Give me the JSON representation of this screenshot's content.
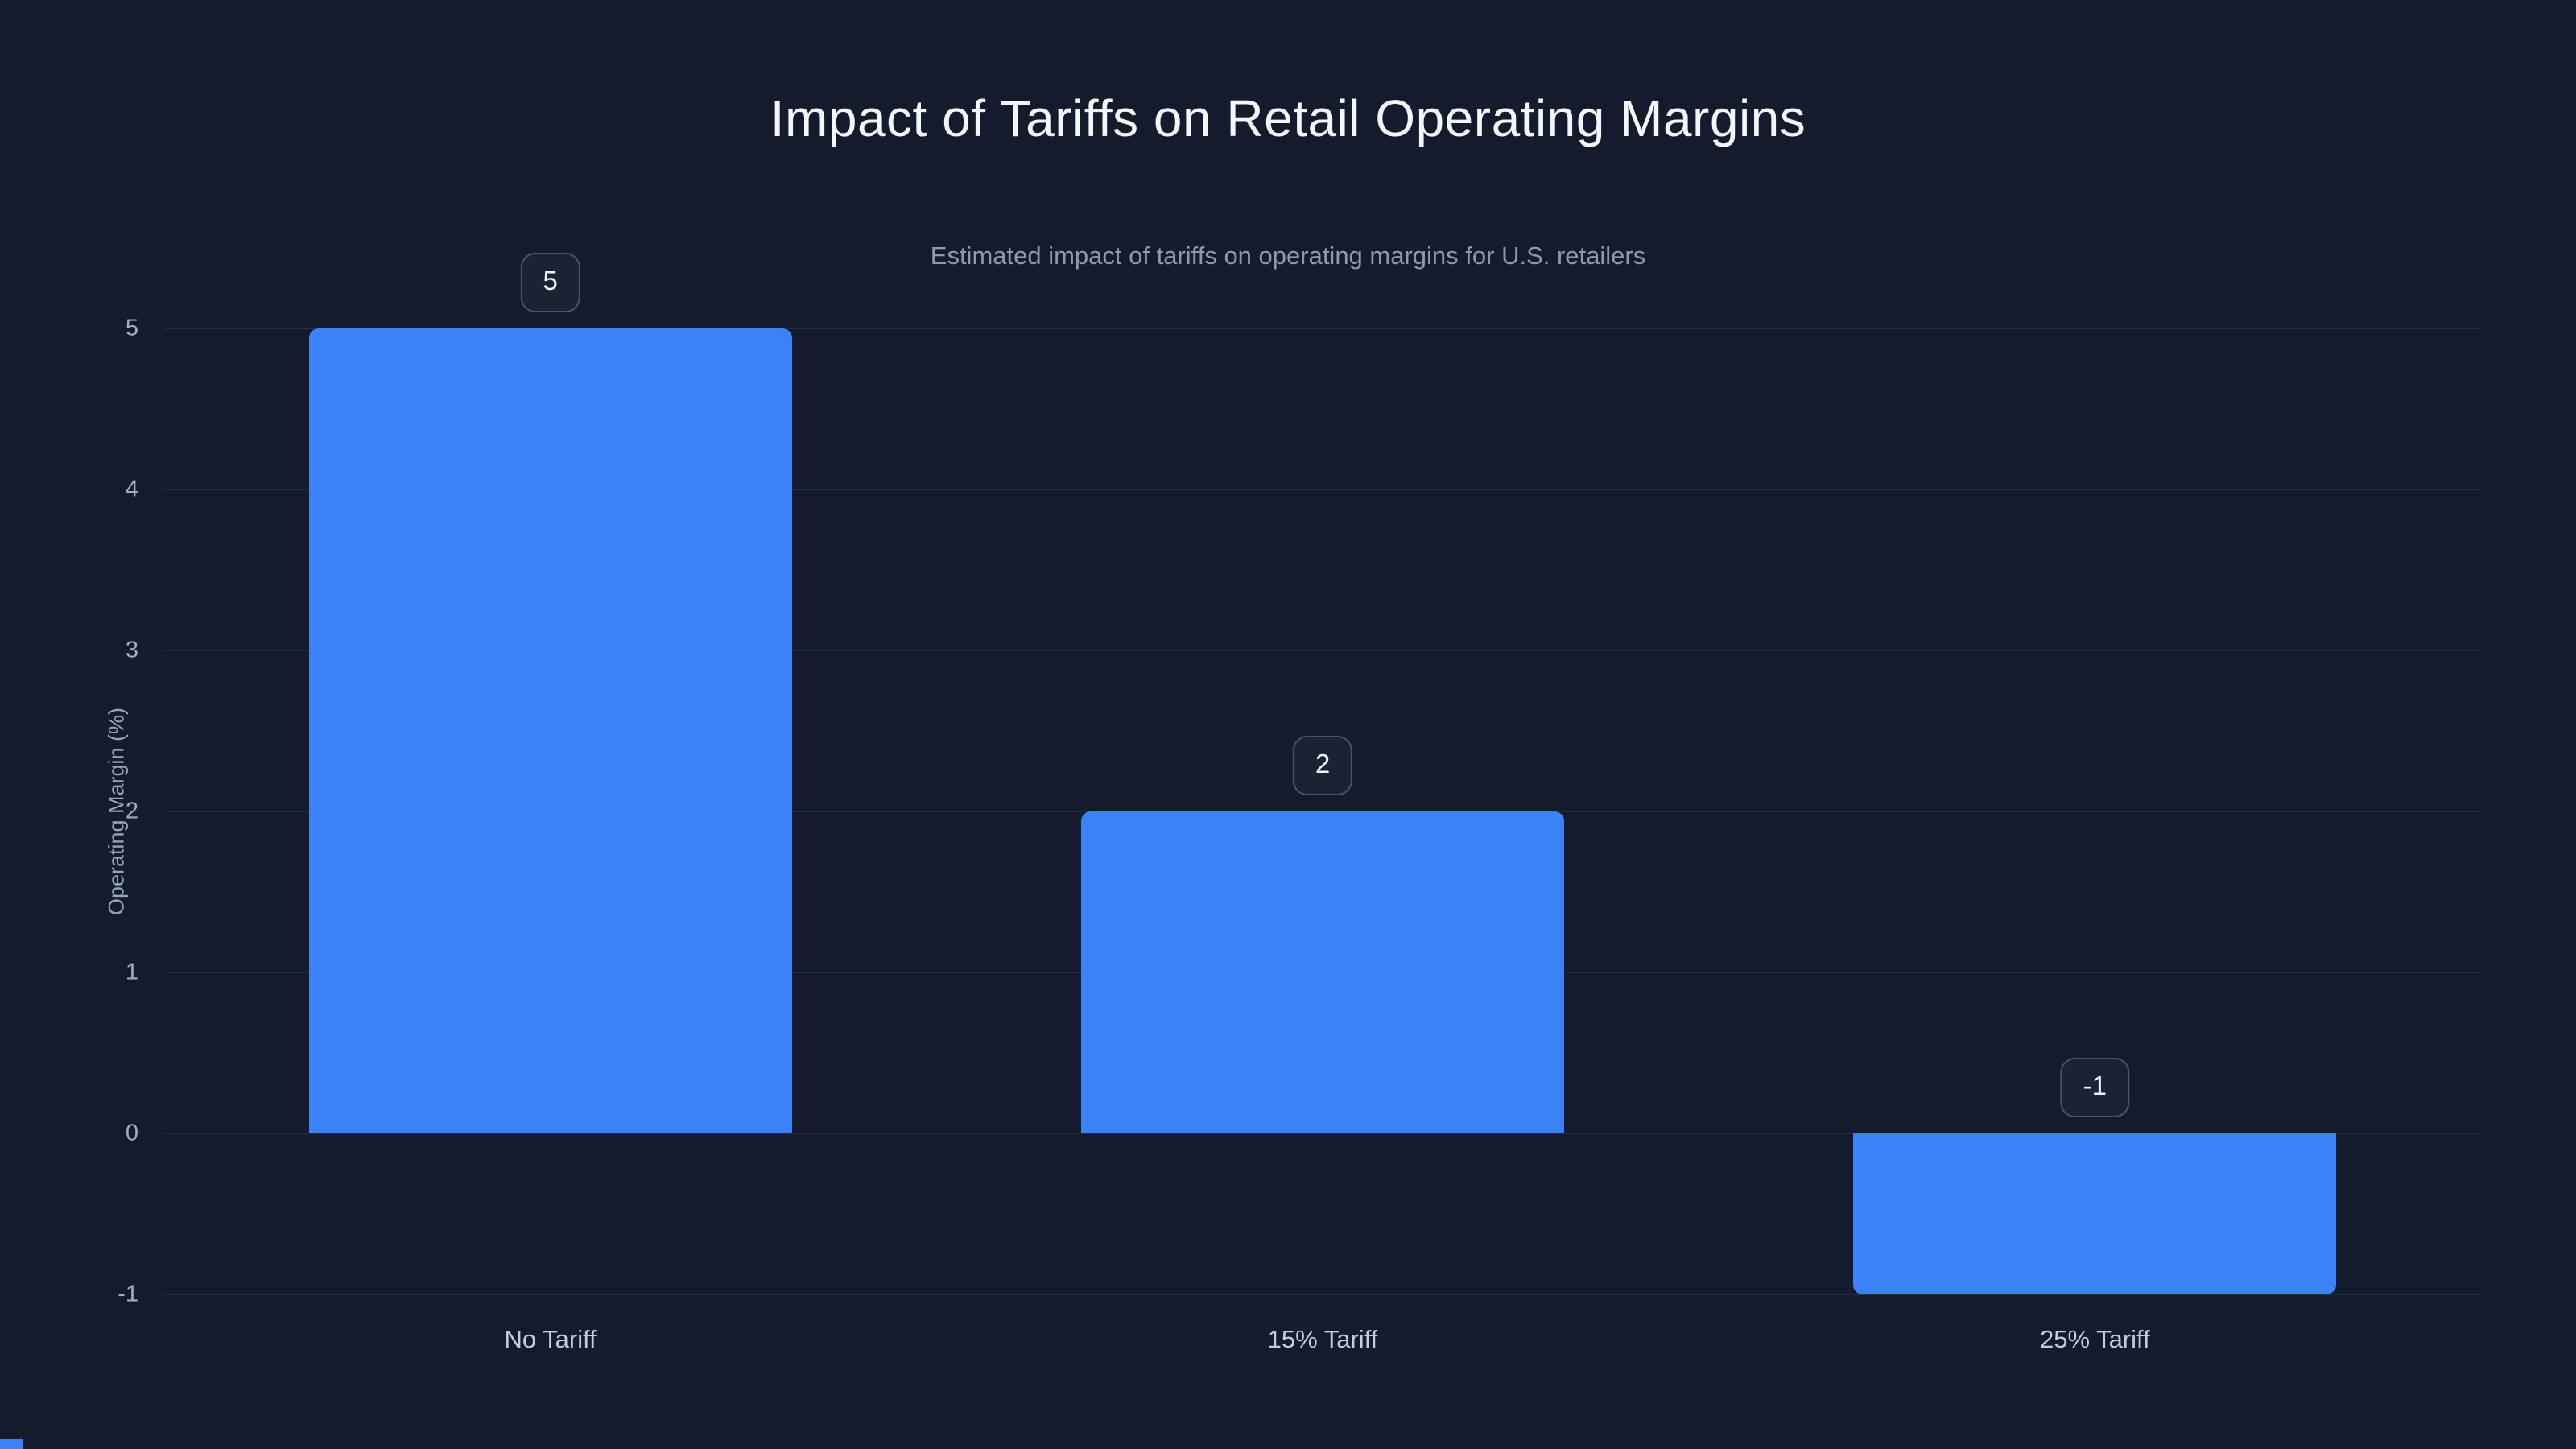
{
  "chart_data": {
    "type": "bar",
    "title": "Impact of Tariffs on Retail Operating Margins",
    "subtitle": "Estimated impact of tariffs on operating margins for U.S. retailers",
    "categories": [
      "No Tariff",
      "15% Tariff",
      "25% Tariff"
    ],
    "values": [
      5,
      2,
      -1
    ],
    "value_labels": [
      "5",
      "2",
      "-1"
    ],
    "xlabel": "",
    "ylabel": "Operating Margin (%)",
    "ylim": [
      -1,
      5
    ],
    "yticks": [
      5,
      4,
      3,
      2,
      1,
      0,
      -1
    ],
    "grid": true,
    "legend": false,
    "label_badges": true,
    "colors": {
      "bar": "#3b82f6",
      "background": "#131b2d",
      "title_text": "#f3f6fb",
      "subtitle_text": "#8d99ad",
      "tick_text": "#a3adc2",
      "gridline": "rgba(148,163,184,0.14)"
    }
  }
}
